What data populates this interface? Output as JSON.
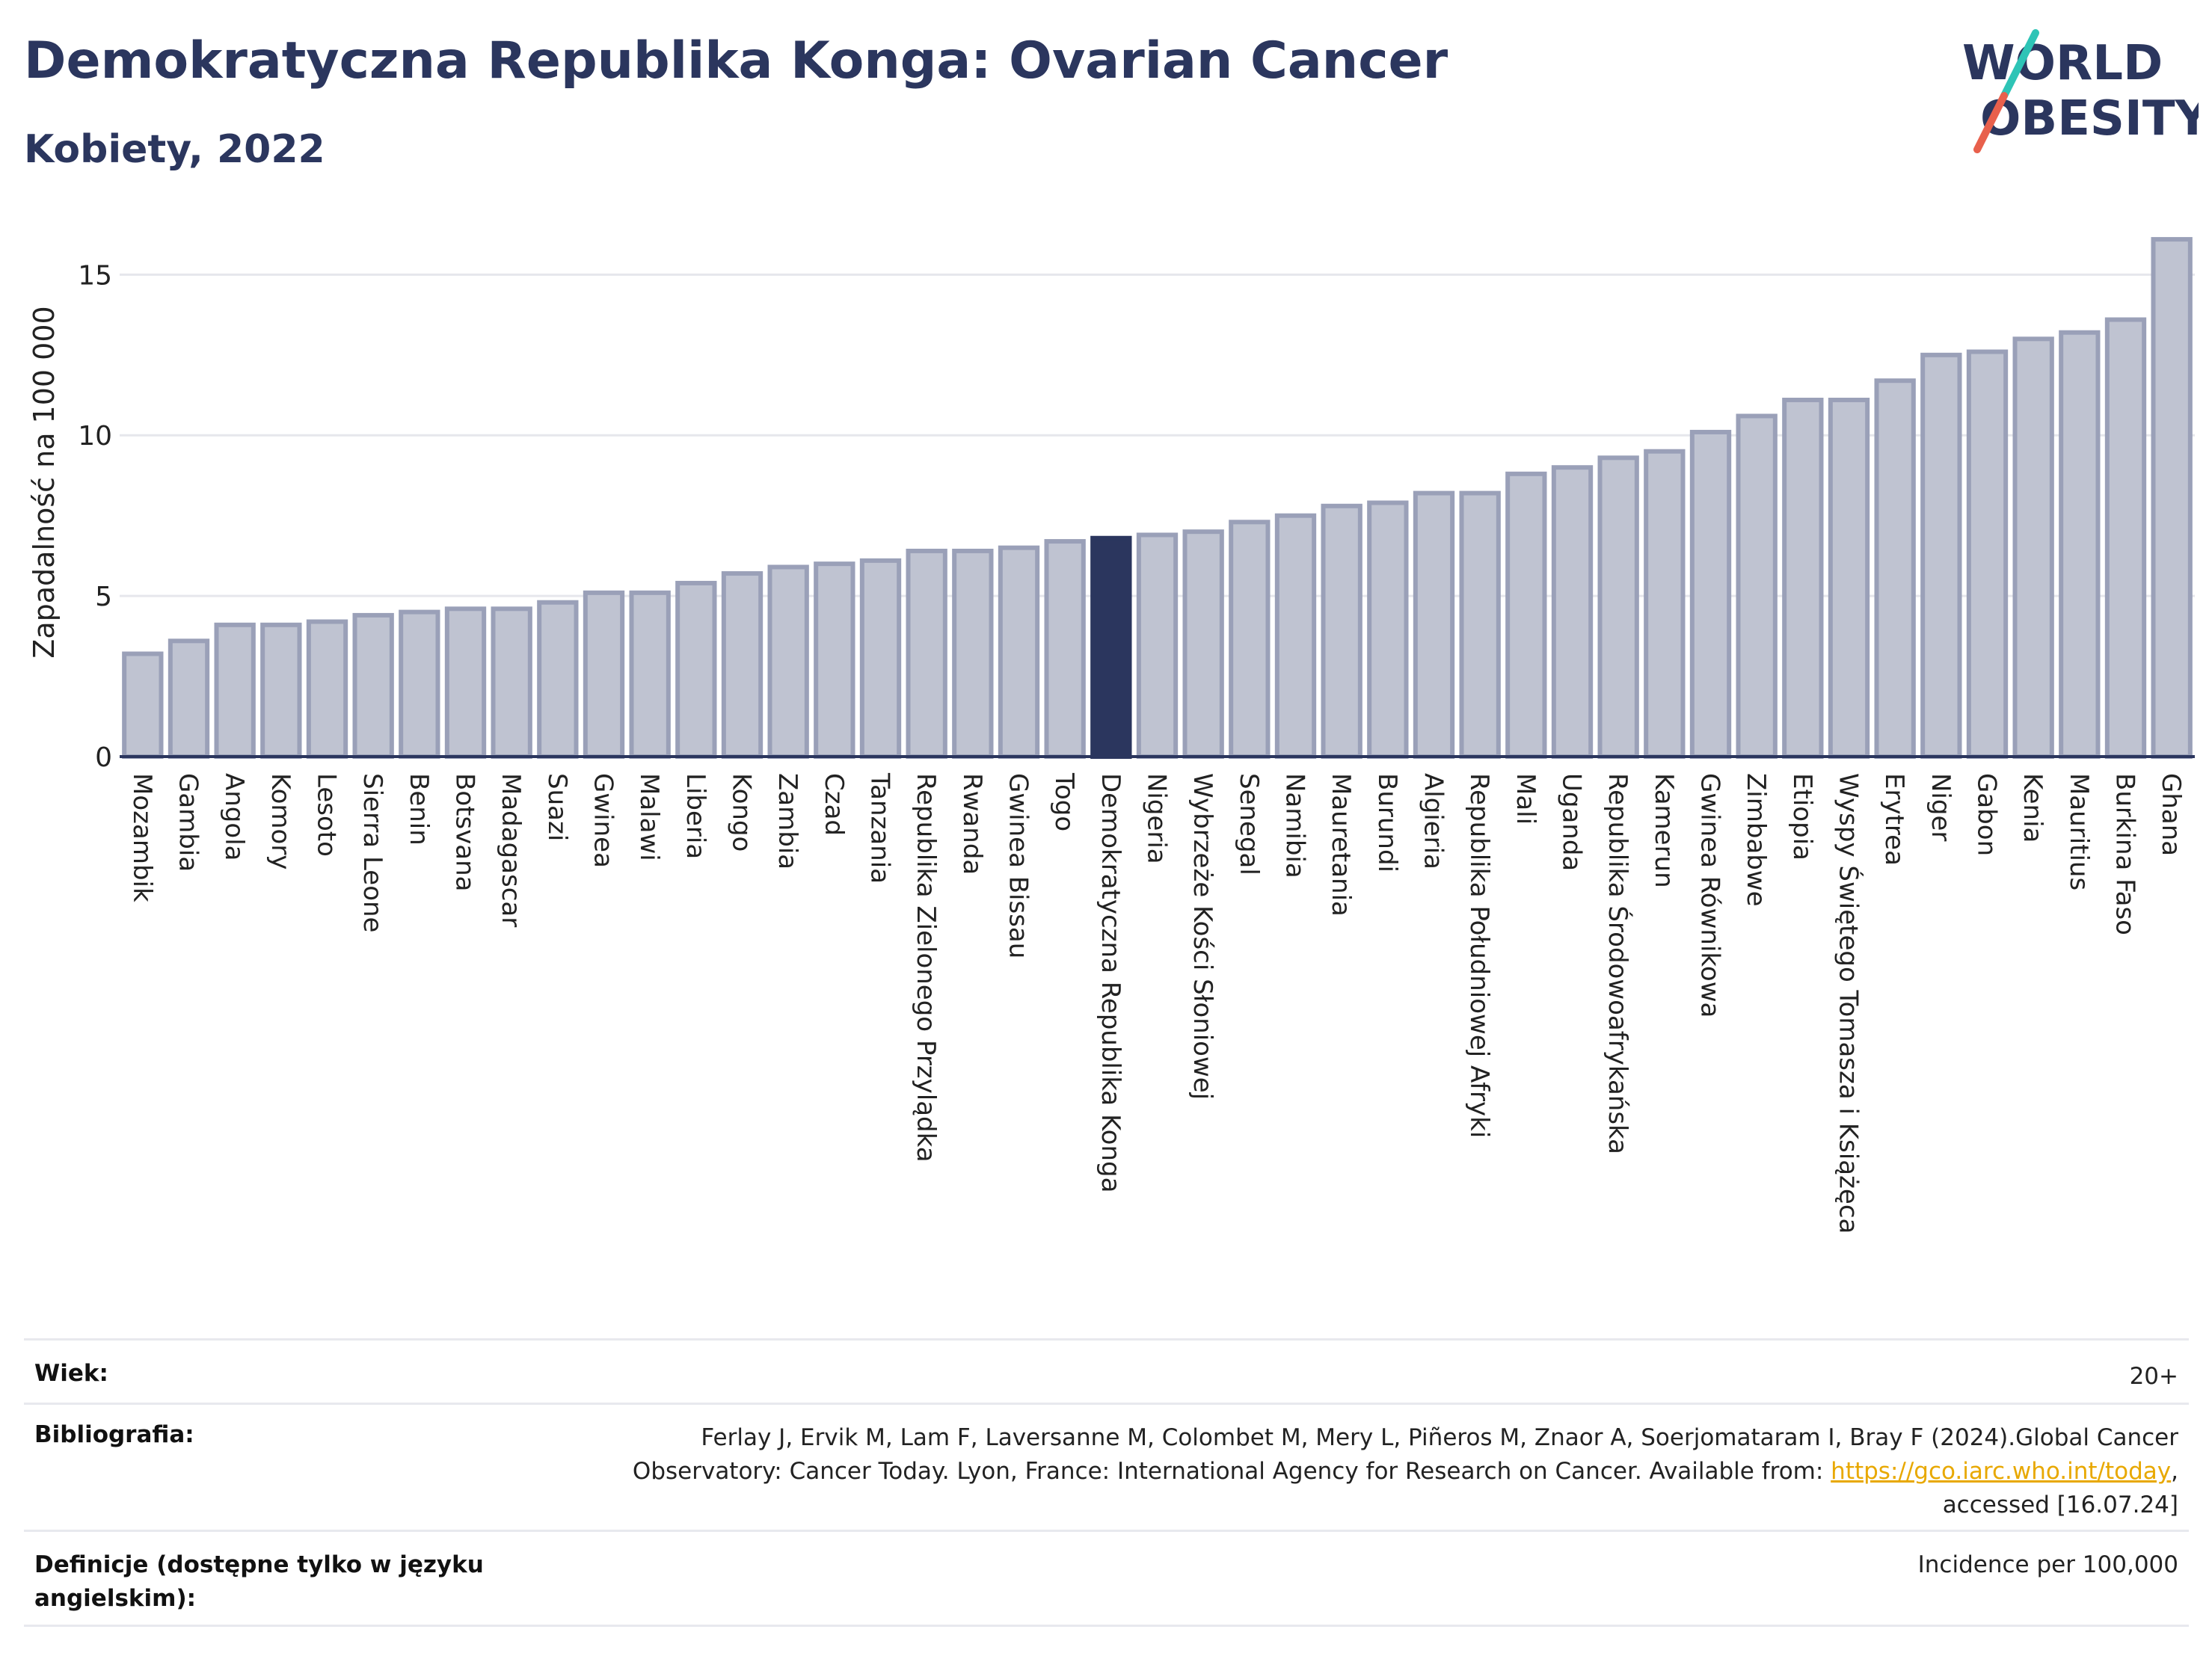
{
  "header": {
    "title": "Demokratyczna Republika Konga: Ovarian Cancer",
    "subtitle": "Kobiety, 2022",
    "logo_line1": "WORLD",
    "logo_line2": "OBESITY"
  },
  "colors": {
    "bar": "#bfc3d1",
    "bar_stroke": "#9aa0b8",
    "highlight": "#2b365e",
    "grid": "#e6e7ec",
    "axis": "#2b365e",
    "logo_teal": "#2ec4b6",
    "logo_red": "#e8604c"
  },
  "chart_data": {
    "type": "bar",
    "ylabel": "Zapadalność na 100 000",
    "ylim": [
      0,
      16.8
    ],
    "yticks": [
      0,
      5,
      10,
      15
    ],
    "grid": true,
    "highlight": "Demokratyczna Republika Konga",
    "categories": [
      "Mozambik",
      "Gambia",
      "Angola",
      "Komory",
      "Lesoto",
      "Sierra Leone",
      "Benin",
      "Botsvana",
      "Madagascar",
      "Suazi",
      "Gwinea",
      "Malawi",
      "Liberia",
      "Kongo",
      "Zambia",
      "Czad",
      "Tanzania",
      "Republika Zielonego Przylądka",
      "Rwanda",
      "Gwinea Bissau",
      "Togo",
      "Demokratyczna Republika Konga",
      "Nigeria",
      "Wybrzeże Kości Słoniowej",
      "Senegal",
      "Namibia",
      "Mauretania",
      "Burundi",
      "Algieria",
      "Republika Południowej Afryki",
      "Mali",
      "Uganda",
      "Republika Środowoafrykańska",
      "Kamerun",
      "Gwinea Równikowa",
      "Zimbabwe",
      "Etiopia",
      "Wyspy Świętego Tomasza i Książęca",
      "Erytrea",
      "Niger",
      "Gabon",
      "Kenia",
      "Mauritius",
      "Burkina Faso",
      "Ghana"
    ],
    "values": [
      3.2,
      3.6,
      4.1,
      4.1,
      4.2,
      4.4,
      4.5,
      4.6,
      4.6,
      4.8,
      5.1,
      5.1,
      5.4,
      5.7,
      5.9,
      6.0,
      6.1,
      6.4,
      6.4,
      6.5,
      6.7,
      6.8,
      6.9,
      7.0,
      7.3,
      7.5,
      7.8,
      7.9,
      8.2,
      8.2,
      8.8,
      9.0,
      9.3,
      9.5,
      10.1,
      10.6,
      11.1,
      11.1,
      11.7,
      12.5,
      12.6,
      13.0,
      13.2,
      13.6,
      16.1
    ]
  },
  "footer": {
    "rows": [
      {
        "label": "Wiek:",
        "value": "20+"
      },
      {
        "label": "Bibliografia:",
        "value_pre": "Ferlay J, Ervik M, Lam F, Laversanne M, Colombet M, Mery L, Piñeros M, Znaor A, Soerjomataram I, Bray F (2024).Global Cancer Observatory: Cancer Today. Lyon, France: International Agency for Research on Cancer. Available from: ",
        "link": "https://gco.iarc.who.int/today",
        "value_post": ", accessed [16.07.24]"
      },
      {
        "label": "Definicje (dostępne tylko w języku angielskim):",
        "value": "Incidence per 100,000"
      }
    ]
  }
}
